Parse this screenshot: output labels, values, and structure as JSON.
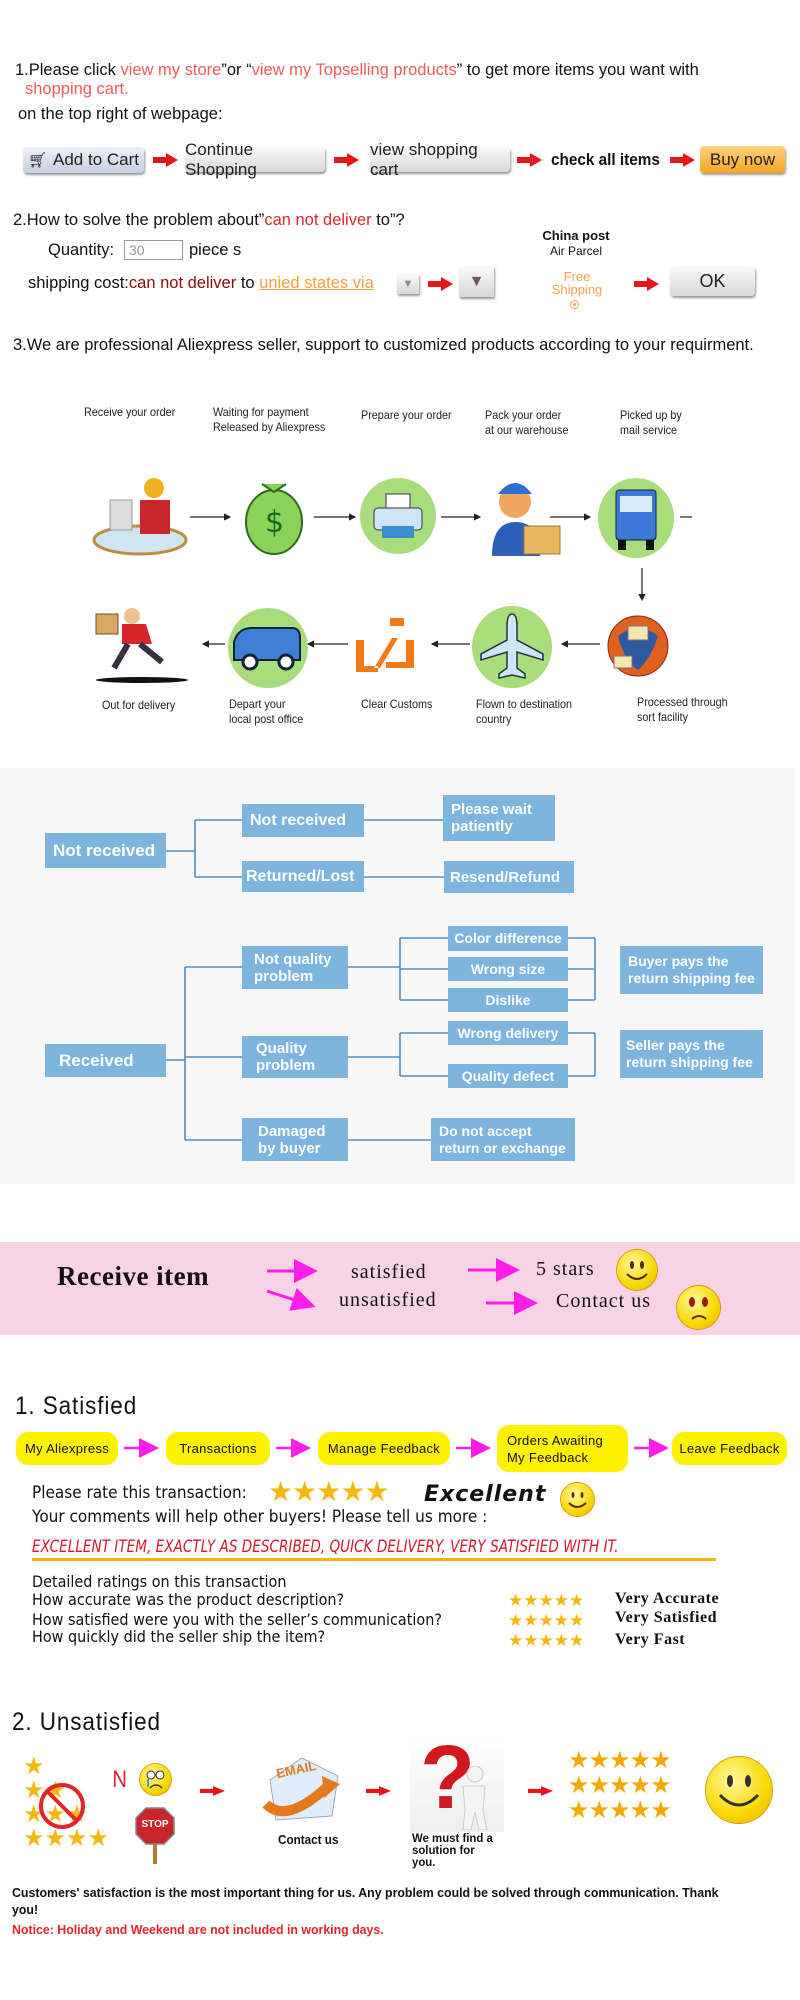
{
  "section1": {
    "prefix": "1.Please click ",
    "q1": "“",
    "link1": "view my store",
    "mid": "”or “",
    "link2": "view my Topselling products",
    "suffix": "” to get more items you want with",
    "line2": "shopping cart.",
    "line3": "on the top right of webpage:",
    "steps": {
      "add_to_cart": "Add to Cart",
      "continue": "Continue Shopping",
      "view_cart": "view shopping cart",
      "check": "check all items",
      "buy": "Buy now"
    }
  },
  "section2": {
    "title_prefix": "2.How to solve the problem about”",
    "title_red": "can not deliver",
    "title_suffix": " to”?",
    "quantity_label": "Quantity:",
    "quantity_value": "30",
    "quantity_unit": "piece s",
    "shipping_label": "shipping cost:",
    "shipping_red": "can not deliver",
    "shipping_to": " to ",
    "shipping_link": "unied states via",
    "carrier": "China post",
    "service": "Air Parcel",
    "free_shipping": "Free Shipping",
    "ok": "OK"
  },
  "section3": {
    "title": "3.We are professional Aliexpress seller, support to customized products according to your requirment."
  },
  "process": {
    "top": [
      [
        "Receive your order",
        ""
      ],
      [
        "Waiting for payment",
        "Released by Aliexpress"
      ],
      [
        "Prepare your order",
        ""
      ],
      [
        "Pack your order",
        "at our warehouse"
      ],
      [
        "Picked up by",
        "mail service"
      ]
    ],
    "bottom": [
      [
        "Out for delivery",
        ""
      ],
      [
        "Depart your",
        "local post office"
      ],
      [
        "Clear Customs",
        ""
      ],
      [
        "Flown to destination",
        "country"
      ],
      [
        "Processed through",
        "sort facility"
      ]
    ]
  },
  "tree": {
    "not_received": "Not received",
    "nr_not_received": "Not received",
    "please_wait": "Please wait patiently",
    "returned_lost": "Returned/Lost",
    "resend_refund": "Resend/Refund",
    "received": "Received",
    "not_quality": "Not quality problem",
    "quality": "Quality problem",
    "damaged": "Damaged by buyer",
    "color_diff": "Color difference",
    "wrong_size": "Wrong size",
    "dislike": "Dislike",
    "wrong_delivery": "Wrong delivery",
    "quality_defect": "Quality defect",
    "buyer_pays": "Buyer pays the return shipping fee",
    "seller_pays": "Seller pays the return shipping fee",
    "do_not_accept": "Do not accept return or exchange",
    "box_color": "#7db5de"
  },
  "banner": {
    "receive": "Receive item",
    "satisfied": "satisfied",
    "unsatisfied": "unsatisfied",
    "five_stars": "5 stars",
    "contact": "Contact us",
    "bg": "#f8d3e6",
    "arrow_color": "#ff1ee8"
  },
  "satisfied": {
    "title": "1. Satisfied",
    "steps": [
      "My Aliexpress",
      "Transactions",
      "Manage Feedback",
      "Orders Awaiting My Feedback",
      "Leave Feedback"
    ],
    "rate_label": "Please rate this transaction:",
    "rating": 5,
    "rating_word": "Excellent",
    "comments": "Your comments will help other buyers! Please tell us more :",
    "feedback": "EXCELLENT ITEM, EXACTLY AS DESCRIBED, QUICK DELIVERY, VERY SATISFIED WITH IT.",
    "detailed": "Detailed ratings on this transaction",
    "questions": [
      {
        "q": "How accurate was the product description?",
        "a": "Very Accurate",
        "stars": 5
      },
      {
        "q": "How satisfied were you with the seller’s communication?",
        "a": "Very Satisfied",
        "stars": 5
      },
      {
        "q": "How quickly did the seller ship the item?",
        "a": "Very Fast",
        "stars": 5
      }
    ]
  },
  "unsatisfied": {
    "title": "2. Unsatisfied",
    "n": "N",
    "stop": "STOP",
    "email": "EMAIL",
    "contact": "Contact us",
    "solution": "We must find a solution for you.",
    "footer": "Customers' satisfaction is the most important thing for us. Any problem could be solved through communication. Thank you!",
    "notice": "Notice: Holiday and Weekend are not included in working days."
  }
}
